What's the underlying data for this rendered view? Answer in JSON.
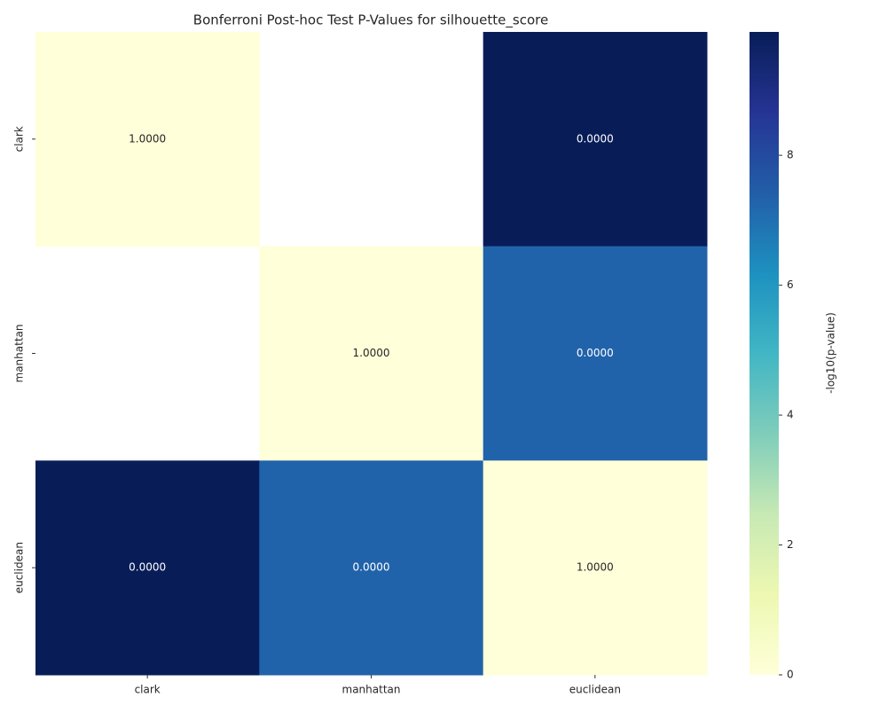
{
  "chart_data": {
    "type": "heatmap",
    "title": "Bonferroni Post-hoc Test P-Values for silhouette_score",
    "x_categories": [
      "clark",
      "manhattan",
      "euclidean"
    ],
    "y_categories": [
      "clark",
      "manhattan",
      "euclidean"
    ],
    "values": [
      [
        1,
        null,
        1.26e-10
      ],
      [
        null,
        1,
        5e-08
      ],
      [
        1.26e-10,
        5e-08,
        1
      ]
    ],
    "value_labels": [
      [
        "1.0000",
        null,
        "0.0000"
      ],
      [
        null,
        "1.0000",
        "0.0000"
      ],
      [
        "0.0000",
        "0.0000",
        "1.0000"
      ]
    ],
    "colormap": "YlGnBu",
    "colorbar_label": "-log10(p-value)",
    "clim": [
      0,
      9.9
    ],
    "cticks": [
      0,
      2,
      4,
      6,
      8
    ]
  }
}
